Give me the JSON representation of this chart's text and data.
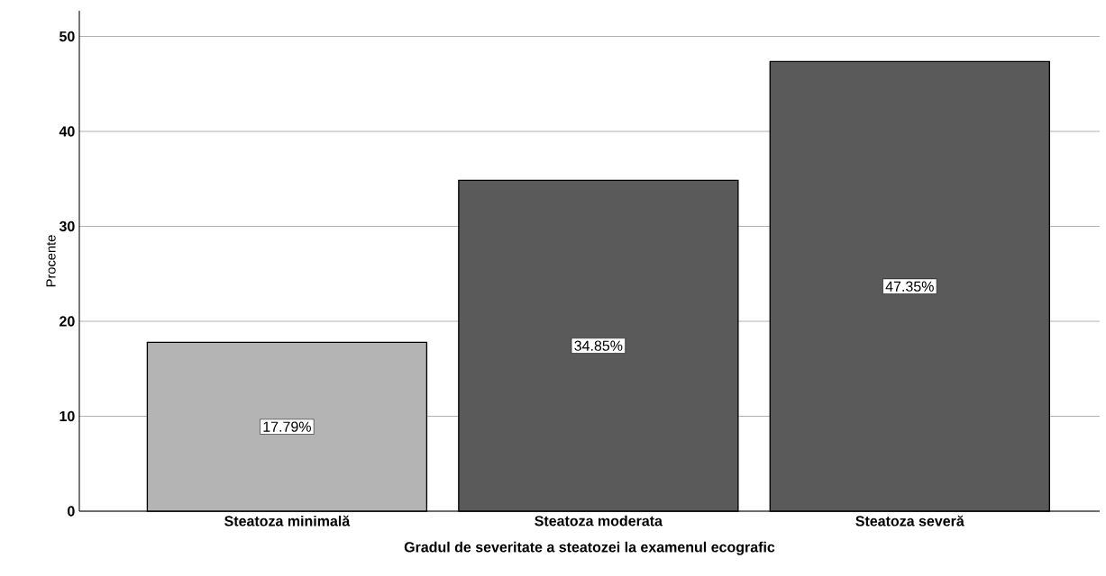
{
  "chart_data": {
    "type": "bar",
    "xlabel": "Gradul de severitate a steatozei la examenul ecografic",
    "ylabel": "Procente",
    "categories": [
      "Steatoza minimală",
      "Steatoza moderata",
      "Steatoza severă"
    ],
    "values": [
      17.79,
      34.85,
      47.35
    ],
    "colors": [
      "#b4b4b4",
      "#5a5a5a",
      "#5a5a5a"
    ],
    "value_labels": [
      "17.79%",
      "34.85%",
      "47.35%"
    ],
    "ylim": [
      0,
      52.7
    ],
    "yticks": [
      0,
      10,
      20,
      30,
      40,
      50
    ],
    "grid": "y"
  }
}
